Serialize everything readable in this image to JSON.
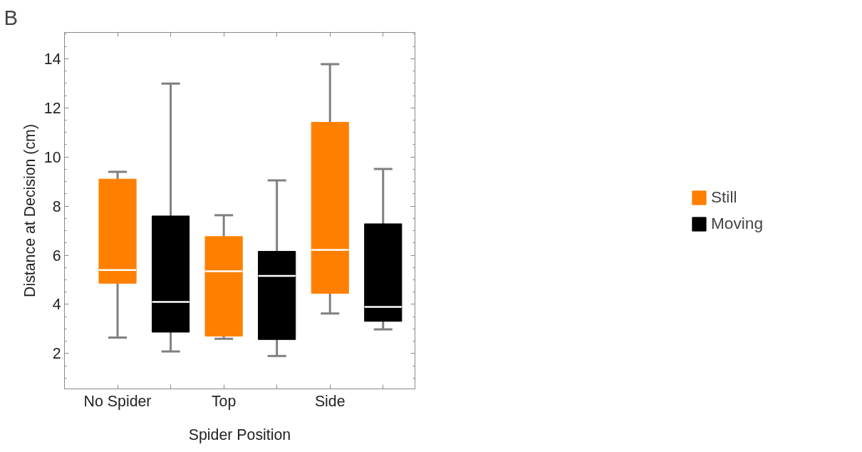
{
  "chart_data": {
    "type": "box",
    "xlabel": "Spider Position",
    "ylabel": "Distance at Decision (cm)",
    "annotations": [
      "B"
    ],
    "categories": [
      "No Spider",
      null,
      "Top",
      null,
      "Side",
      null
    ],
    "ylim": [
      0.56,
      15.07
    ],
    "yticks": [
      2,
      4,
      6,
      8,
      10,
      12,
      14
    ],
    "grid": false,
    "legend": "right",
    "series": [
      {
        "name": "Still",
        "color": "#ff8000",
        "boxes": [
          {
            "low": 2.65,
            "q1": 4.86,
            "median": 5.4,
            "q3": 9.1,
            "high": 9.4
          },
          null,
          {
            "low": 2.6,
            "q1": 2.71,
            "median": 5.35,
            "q3": 6.76,
            "high": 7.63
          },
          null,
          {
            "low": 3.63,
            "q1": 4.45,
            "median": 6.22,
            "q3": 11.41,
            "high": 13.78
          },
          null
        ]
      },
      {
        "name": "Moving",
        "color": "#000000",
        "boxes": [
          null,
          {
            "low": 2.08,
            "q1": 2.87,
            "median": 4.1,
            "q3": 7.6,
            "high": 12.99
          },
          null,
          {
            "low": 1.9,
            "q1": 2.57,
            "median": 5.16,
            "q3": 6.16,
            "high": 9.05
          },
          null,
          {
            "low": 2.98,
            "q1": 3.31,
            "median": 3.9,
            "q3": 7.28,
            "high": 9.51
          }
        ]
      }
    ]
  }
}
